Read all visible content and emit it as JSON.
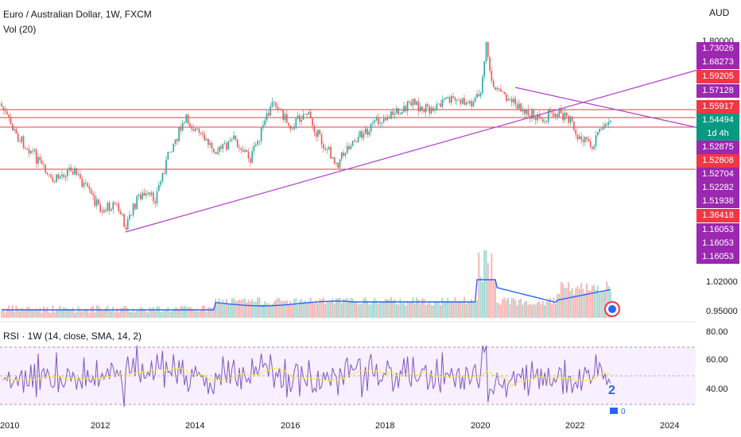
{
  "header": {
    "symbol_title": "Euro / Australian Dollar, 1W, FXCM",
    "volume_indicator": "Vol (20)",
    "currency": "AUD"
  },
  "price_badges": [
    {
      "value": "1.80000",
      "color": "#ffffff",
      "text_color": "#131722"
    },
    {
      "value": "1.73026",
      "color": "#9c27b0"
    },
    {
      "value": "1.68273",
      "color": "#9c27b0"
    },
    {
      "value": "1.59205",
      "color": "#f23645"
    },
    {
      "value": "1.57128",
      "color": "#9c27b0"
    },
    {
      "value": "1.55917",
      "color": "#f23645"
    },
    {
      "value": "1.54494",
      "color": "#089981"
    },
    {
      "value": "1d 4h",
      "color": "#089981"
    },
    {
      "value": "1.52875",
      "color": "#9c27b0"
    },
    {
      "value": "1.52808",
      "color": "#f23645"
    },
    {
      "value": "1.52704",
      "color": "#9c27b0"
    },
    {
      "value": "1.52282",
      "color": "#9c27b0"
    },
    {
      "value": "1.51938",
      "color": "#9c27b0"
    },
    {
      "value": "1.36418",
      "color": "#f23645"
    },
    {
      "value": "1.16053",
      "color": "#9c27b0"
    },
    {
      "value": "1.16053",
      "color": "#9c27b0"
    },
    {
      "value": "1.16053",
      "color": "#9c27b0"
    }
  ],
  "volume_axis": {
    "upper": "1.02000",
    "lower": "0.95000"
  },
  "rsi": {
    "title": "RSI · 1W (14, close, SMA, 14, 2)",
    "ticks": [
      "80.00",
      "60.00",
      "40.00"
    ],
    "annotation": "2"
  },
  "x_axis": {
    "years": [
      "2010",
      "2012",
      "2014",
      "2016",
      "2018",
      "2020",
      "2022",
      "2024"
    ]
  },
  "colors": {
    "up": "#26a69a",
    "down": "#ef5350",
    "trend": "#b03fc9",
    "level": "#f23645",
    "volume_ma": "#2962ff",
    "rsi_line": "#7e57c2",
    "rsi_ma": "#f5e642"
  }
}
